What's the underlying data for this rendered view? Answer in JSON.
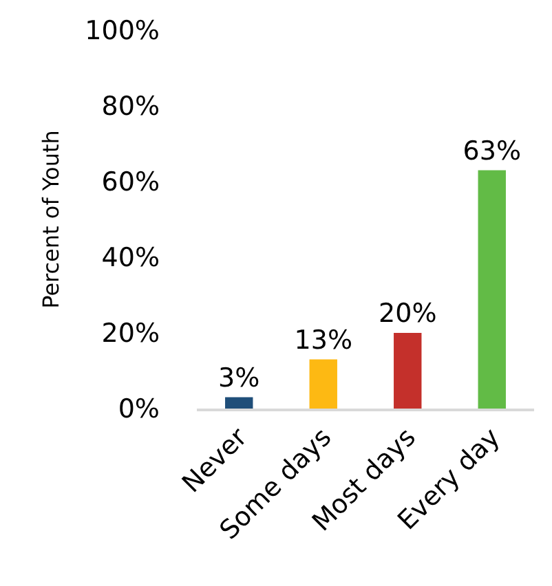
{
  "chart_data": {
    "type": "bar",
    "ylabel": "Percent of Youth",
    "categories": [
      "Never",
      "Some days",
      "Most days",
      "Every day"
    ],
    "values": [
      3,
      13,
      20,
      63
    ],
    "colors": [
      "#1f4e79",
      "#fdb913",
      "#c4302b",
      "#62bb46"
    ],
    "value_labels": [
      "3%",
      "13%",
      "20%",
      "63%"
    ],
    "ylim": [
      0,
      100
    ],
    "yticks": [
      {
        "value": 0,
        "label": "0%"
      },
      {
        "value": 20,
        "label": "20%"
      },
      {
        "value": 40,
        "label": "40%"
      },
      {
        "value": 60,
        "label": "60%"
      },
      {
        "value": 80,
        "label": "80%"
      },
      {
        "value": 100,
        "label": "100%"
      }
    ]
  }
}
